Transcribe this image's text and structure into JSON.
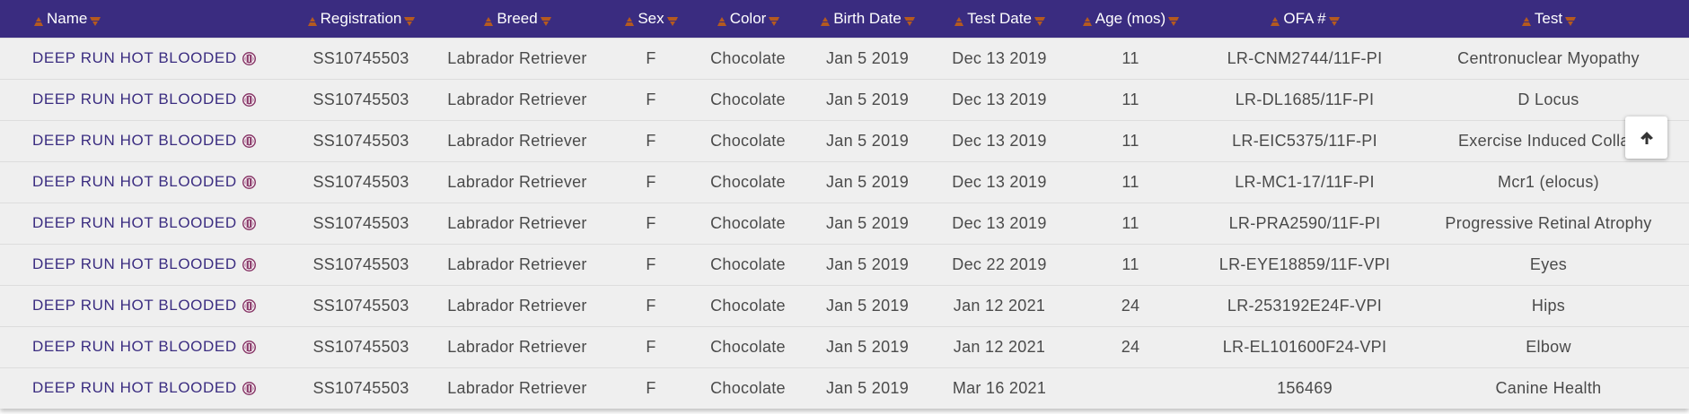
{
  "table": {
    "headers": [
      "Name",
      "Registration",
      "Breed",
      "Sex",
      "Color",
      "Birth Date",
      "Test Date",
      "Age (mos)",
      "OFA #",
      "Test"
    ],
    "rows": [
      [
        "DEEP RUN HOT BLOODED",
        "SS10745503",
        "Labrador Retriever",
        "F",
        "Chocolate",
        "Jan 5 2019",
        "Dec 13 2019",
        "11",
        "LR-CNM2744/11F-PI",
        "Centronuclear Myopathy"
      ],
      [
        "DEEP RUN HOT BLOODED",
        "SS10745503",
        "Labrador Retriever",
        "F",
        "Chocolate",
        "Jan 5 2019",
        "Dec 13 2019",
        "11",
        "LR-DL1685/11F-PI",
        "D Locus"
      ],
      [
        "DEEP RUN HOT BLOODED",
        "SS10745503",
        "Labrador Retriever",
        "F",
        "Chocolate",
        "Jan 5 2019",
        "Dec 13 2019",
        "11",
        "LR-EIC5375/11F-PI",
        "Exercise Induced Collap"
      ],
      [
        "DEEP RUN HOT BLOODED",
        "SS10745503",
        "Labrador Retriever",
        "F",
        "Chocolate",
        "Jan 5 2019",
        "Dec 13 2019",
        "11",
        "LR-MC1-17/11F-PI",
        "Mcr1 (elocus)"
      ],
      [
        "DEEP RUN HOT BLOODED",
        "SS10745503",
        "Labrador Retriever",
        "F",
        "Chocolate",
        "Jan 5 2019",
        "Dec 13 2019",
        "11",
        "LR-PRA2590/11F-PI",
        "Progressive Retinal Atrophy"
      ],
      [
        "DEEP RUN HOT BLOODED",
        "SS10745503",
        "Labrador Retriever",
        "F",
        "Chocolate",
        "Jan 5 2019",
        "Dec 22 2019",
        "11",
        "LR-EYE18859/11F-VPI",
        "Eyes"
      ],
      [
        "DEEP RUN HOT BLOODED",
        "SS10745503",
        "Labrador Retriever",
        "F",
        "Chocolate",
        "Jan 5 2019",
        "Jan 12 2021",
        "24",
        "LR-253192E24F-VPI",
        "Hips"
      ],
      [
        "DEEP RUN HOT BLOODED",
        "SS10745503",
        "Labrador Retriever",
        "F",
        "Chocolate",
        "Jan 5 2019",
        "Jan 12 2021",
        "24",
        "LR-EL101600F24-VPI",
        "Elbow"
      ],
      [
        "DEEP RUN HOT BLOODED",
        "SS10745503",
        "Labrador Retriever",
        "F",
        "Chocolate",
        "Jan 5 2019",
        "Mar 16 2021",
        null,
        "156469",
        "Canine Health"
      ]
    ]
  }
}
